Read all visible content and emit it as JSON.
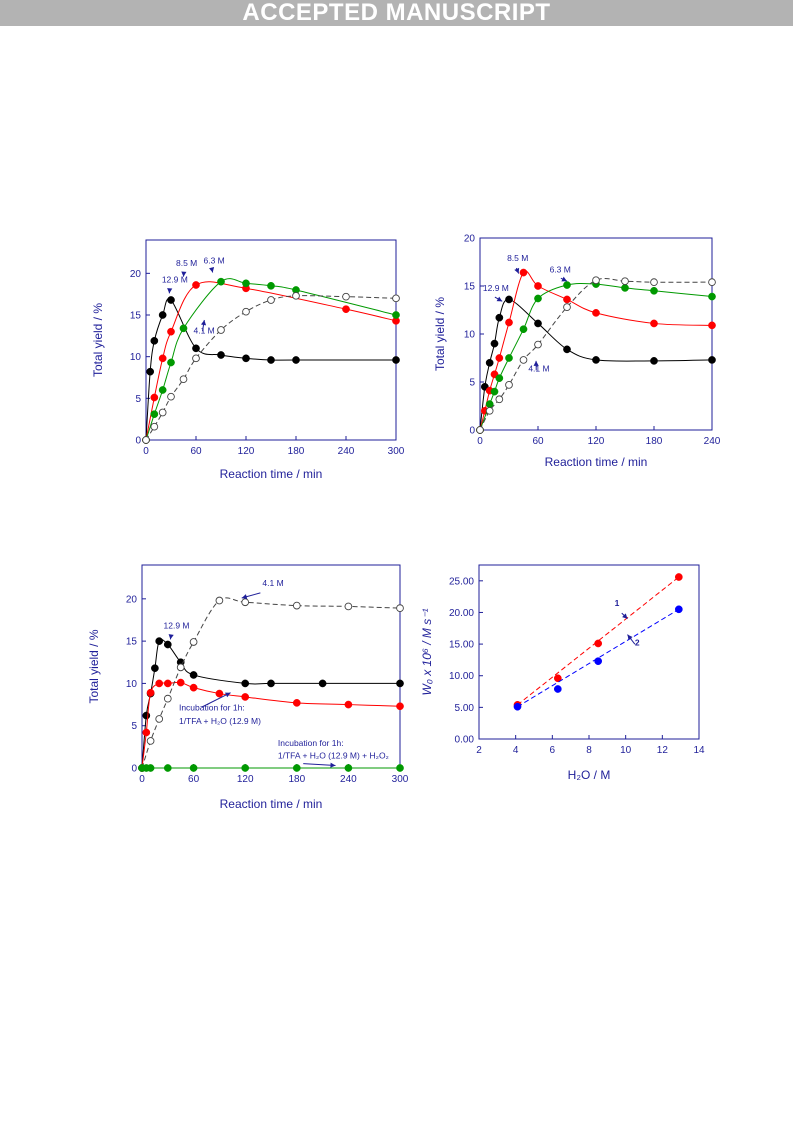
{
  "banner": "ACCEPTED MANUSCRIPT",
  "colors": {
    "axis": "#1f1f99",
    "black": "#000000",
    "red": "#ff0000",
    "green": "#009900",
    "open": "#555555",
    "blue": "#0000ff"
  },
  "chart_data": [
    {
      "type": "line",
      "xlabel": "Reaction time / min",
      "ylabel": "Total yield / %",
      "xlim": [
        0,
        300
      ],
      "ylim": [
        0,
        24
      ],
      "xticks": [
        0,
        60,
        120,
        180,
        240,
        300
      ],
      "yticks": [
        0,
        5,
        10,
        15,
        20
      ],
      "series": [
        {
          "name": "12.9 M",
          "color": "black",
          "marker": "filled",
          "x": [
            0,
            5,
            10,
            20,
            30,
            60,
            90,
            120,
            150,
            180,
            300
          ],
          "y": [
            0,
            8.2,
            11.9,
            15,
            16.8,
            11,
            10.2,
            9.8,
            9.6,
            9.6,
            9.6
          ]
        },
        {
          "name": "8.5 M",
          "color": "red",
          "marker": "filled",
          "x": [
            0,
            10,
            20,
            30,
            60,
            120,
            240,
            300
          ],
          "y": [
            0,
            5.1,
            9.8,
            13,
            18.6,
            18.2,
            15.7,
            14.3
          ]
        },
        {
          "name": "6.3 M",
          "color": "green",
          "marker": "filled",
          "x": [
            0,
            10,
            20,
            30,
            45,
            90,
            120,
            150,
            180,
            300
          ],
          "y": [
            0,
            3.1,
            6,
            9.3,
            13.4,
            19,
            18.8,
            18.5,
            18,
            15
          ]
        },
        {
          "name": "4.1 M",
          "color": "open",
          "marker": "open",
          "dashed": true,
          "x": [
            0,
            10,
            20,
            30,
            45,
            60,
            90,
            120,
            150,
            180,
            240,
            300
          ],
          "y": [
            0,
            1.6,
            3.3,
            5.2,
            7.3,
            9.8,
            13.2,
            15.4,
            16.8,
            17.3,
            17.2,
            17
          ]
        }
      ],
      "annotations": [
        {
          "text": "12.9 M",
          "x": 19,
          "y": 18.9,
          "ax": 28,
          "ay": 17.6
        },
        {
          "text": "8.5 M",
          "x": 36,
          "y": 20.9,
          "ax": 45,
          "ay": 19.6
        },
        {
          "text": "6.3 M",
          "x": 69,
          "y": 21.2,
          "ax": 80,
          "ay": 20.1
        },
        {
          "text": "4.1 M",
          "x": 57,
          "y": 12.8,
          "ax": 70,
          "ay": 14.4
        }
      ]
    },
    {
      "type": "line",
      "xlabel": "Reaction time / min",
      "ylabel": "Total yield / %",
      "xlim": [
        0,
        240
      ],
      "ylim": [
        0,
        20
      ],
      "xticks": [
        0,
        60,
        120,
        180,
        240
      ],
      "yticks": [
        0,
        5,
        10,
        15,
        20
      ],
      "series": [
        {
          "name": "12.9 M",
          "color": "black",
          "marker": "filled",
          "x": [
            0,
            5,
            10,
            15,
            20,
            30,
            60,
            90,
            120,
            180,
            240
          ],
          "y": [
            0,
            4.5,
            7,
            9,
            11.7,
            13.6,
            11.1,
            8.4,
            7.3,
            7.2,
            7.3
          ]
        },
        {
          "name": "8.5 M",
          "color": "red",
          "marker": "filled",
          "x": [
            0,
            5,
            10,
            15,
            20,
            30,
            45,
            60,
            90,
            120,
            180,
            240
          ],
          "y": [
            0,
            2,
            4.1,
            5.8,
            7.5,
            11.2,
            16.4,
            15,
            13.6,
            12.2,
            11.1,
            10.9
          ]
        },
        {
          "name": "6.3 M",
          "color": "green",
          "marker": "filled",
          "x": [
            0,
            10,
            15,
            20,
            30,
            45,
            60,
            90,
            120,
            150,
            180,
            240
          ],
          "y": [
            0,
            2.7,
            4,
            5.4,
            7.5,
            10.5,
            13.7,
            15.1,
            15.2,
            14.8,
            14.5,
            13.9
          ]
        },
        {
          "name": "4.1 M",
          "color": "open",
          "marker": "open",
          "dashed": true,
          "x": [
            0,
            10,
            20,
            30,
            45,
            60,
            90,
            120,
            150,
            180,
            240
          ],
          "y": [
            0,
            2,
            3.2,
            4.7,
            7.3,
            8.9,
            12.8,
            15.6,
            15.5,
            15.4,
            15.4
          ]
        }
      ],
      "annotations": [
        {
          "text": "12.9 M",
          "x": 3,
          "y": 14.5,
          "ax": 23,
          "ay": 13.4
        },
        {
          "text": "8.5 M",
          "x": 28,
          "y": 17.6,
          "ax": 40,
          "ay": 16.3
        },
        {
          "text": "6.3 M",
          "x": 72,
          "y": 16.4,
          "ax": 90,
          "ay": 15.5
        },
        {
          "text": "4.1 M",
          "x": 50,
          "y": 6.1,
          "ax": 58,
          "ay": 7.2
        }
      ]
    },
    {
      "type": "line",
      "xlabel": "Reaction time / min",
      "ylabel": "Total yield / %",
      "xlim": [
        0,
        300
      ],
      "ylim": [
        0,
        24
      ],
      "xticks": [
        0,
        60,
        120,
        180,
        240,
        300
      ],
      "yticks": [
        0,
        5,
        10,
        15,
        20
      ],
      "series": [
        {
          "name": "12.9 M",
          "color": "black",
          "marker": "filled",
          "x": [
            0,
            5,
            10,
            15,
            20,
            30,
            45,
            60,
            120,
            150,
            210,
            300
          ],
          "y": [
            0,
            6.2,
            8.8,
            11.8,
            15,
            14.6,
            12.5,
            11,
            10,
            10,
            10,
            10
          ]
        },
        {
          "name": "",
          "color": "red",
          "marker": "filled",
          "x": [
            0,
            5,
            10,
            20,
            30,
            45,
            60,
            90,
            120,
            180,
            240,
            300
          ],
          "y": [
            0,
            4.2,
            8.9,
            10,
            10,
            10.1,
            9.5,
            8.8,
            8.4,
            7.7,
            7.5,
            7.3
          ]
        },
        {
          "name": "4.1 M",
          "color": "open",
          "marker": "open",
          "dashed": true,
          "x": [
            0,
            10,
            20,
            30,
            45,
            60,
            90,
            120,
            180,
            240,
            300
          ],
          "y": [
            0,
            3.2,
            5.8,
            8.2,
            11.9,
            14.9,
            19.8,
            19.6,
            19.2,
            19.1,
            18.9
          ]
        },
        {
          "name": "",
          "color": "green",
          "marker": "filled",
          "x": [
            0,
            5,
            10,
            30,
            60,
            120,
            180,
            240,
            300
          ],
          "y": [
            0,
            0,
            0,
            0,
            0,
            0,
            0,
            0,
            0
          ]
        }
      ],
      "annotations": [
        {
          "text": "12.9 M",
          "x": 25,
          "y": 16.5,
          "ax": 33,
          "ay": 15.2
        },
        {
          "text": "4.1 M",
          "x": 140,
          "y": 21.5,
          "ax": 116,
          "ay": 20.1
        },
        {
          "text": "Incubation for 1h:",
          "x": 43,
          "y": 6.8,
          "ax": 103,
          "ay": 8.9
        },
        {
          "text": "1/TFA + H₂O (12.9 M)",
          "x": 43,
          "y": 5.2
        },
        {
          "text": "Incubation for 1h:",
          "x": 158,
          "y": 2.6
        },
        {
          "text": "1/TFA + H₂O (12.9 M) + H₂O₂",
          "x": 158,
          "y": 1.1,
          "ax": 225,
          "ay": 0.3
        }
      ]
    },
    {
      "type": "scatter",
      "xlabel": "H₂O / M",
      "ylabel": "W₀ x 10⁶ / M s⁻¹",
      "xlim": [
        2,
        14
      ],
      "ylim": [
        0,
        27.5
      ],
      "xticks": [
        2,
        4,
        6,
        8,
        10,
        12,
        14
      ],
      "yticks": [
        "0.00",
        "5.00",
        "10.00",
        "15.00",
        "20.00",
        "25.00"
      ],
      "series": [
        {
          "name": "1",
          "color": "red",
          "marker": "filled",
          "dashed": true,
          "x": [
            4.1,
            6.3,
            8.5,
            12.9
          ],
          "y": [
            5.4,
            9.6,
            15.1,
            25.6
          ]
        },
        {
          "name": "2",
          "color": "blue",
          "marker": "filled",
          "dashed": true,
          "x": [
            4.1,
            6.3,
            8.5,
            12.9
          ],
          "y": [
            5.1,
            7.9,
            12.3,
            20.5
          ]
        }
      ],
      "annotations": [
        {
          "text": "1",
          "x": 9.4,
          "y": 21.0,
          "ax": 10.1,
          "ay": 19.0
        },
        {
          "text": "2",
          "x": 10.5,
          "y": 14.8,
          "ax": 10.1,
          "ay": 16.5
        }
      ]
    }
  ]
}
